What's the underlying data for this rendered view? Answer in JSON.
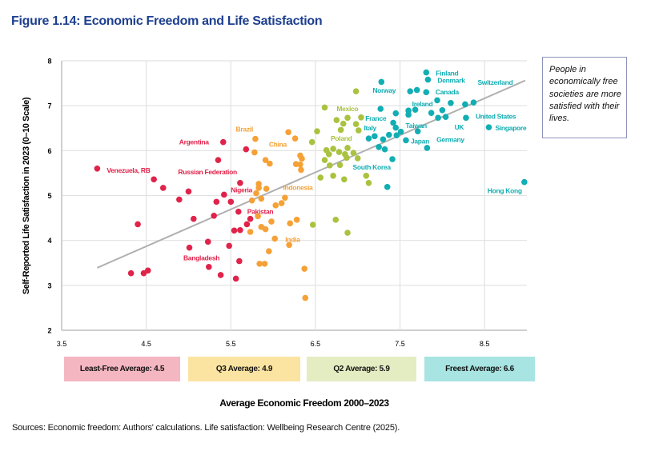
{
  "title": "Figure 1.14: Economic Freedom and Life Satisfaction",
  "note": "People in economically free societies are more satisfied with their lives.",
  "source": "Sources: Economic freedom: Authors' calculations. Life satisfaction: Wellbeing Research Centre (2025).",
  "bands": [
    {
      "label": "Least-Free Average: 4.5",
      "color": "#f4b7c1"
    },
    {
      "label": "Q3 Average: 4.9",
      "color": "#fbe4a2"
    },
    {
      "label": "Q2 Average: 5.9",
      "color": "#e4ecc2"
    },
    {
      "label": "Freest Average: 6.6",
      "color": "#a7e4e2"
    }
  ],
  "chart_data": {
    "type": "scatter",
    "title": "Figure 1.14: Economic Freedom and Life Satisfaction",
    "xlabel": "Average Economic Freedom 2000–2023",
    "ylabel": "Self-Reported Life Satisfaction in 2023 (0–10 Scale)",
    "xlim": [
      3.5,
      9.0
    ],
    "ylim": [
      2,
      8
    ],
    "xticks": [
      "3.5",
      "4.5",
      "5.5",
      "6.5",
      "7.5",
      "8.5"
    ],
    "yticks": [
      "2",
      "3",
      "4",
      "5",
      "6",
      "7",
      "8"
    ],
    "grid": true,
    "trendline": {
      "x": [
        3.92,
        8.98
      ],
      "y": [
        3.39,
        7.56
      ],
      "color": "#b0b0b0"
    },
    "series": [
      {
        "name": "Least-Free",
        "color": "#e0234a",
        "points": [
          {
            "x": 3.92,
            "y": 5.6,
            "label": "Venezuela, RB"
          },
          {
            "x": 4.59,
            "y": 5.36
          },
          {
            "x": 4.7,
            "y": 5.17
          },
          {
            "x": 5.0,
            "y": 5.09
          },
          {
            "x": 4.89,
            "y": 4.91
          },
          {
            "x": 4.4,
            "y": 4.36
          },
          {
            "x": 5.06,
            "y": 4.48
          },
          {
            "x": 5.3,
            "y": 4.55
          },
          {
            "x": 5.33,
            "y": 4.86
          },
          {
            "x": 5.42,
            "y": 5.02
          },
          {
            "x": 5.5,
            "y": 4.86,
            "label": "Nigeria"
          },
          {
            "x": 5.61,
            "y": 5.28
          },
          {
            "x": 5.59,
            "y": 4.64,
            "label": "Pakistan"
          },
          {
            "x": 5.73,
            "y": 4.48
          },
          {
            "x": 5.69,
            "y": 4.36
          },
          {
            "x": 5.54,
            "y": 4.22
          },
          {
            "x": 5.61,
            "y": 4.23
          },
          {
            "x": 5.41,
            "y": 6.19,
            "label": "Argentina"
          },
          {
            "x": 5.68,
            "y": 6.03
          },
          {
            "x": 5.35,
            "y": 5.79,
            "label": "Russian Federation"
          },
          {
            "x": 5.23,
            "y": 3.97
          },
          {
            "x": 5.01,
            "y": 3.84
          },
          {
            "x": 5.48,
            "y": 3.88,
            "label": "Bangladesh"
          },
          {
            "x": 5.6,
            "y": 3.54
          },
          {
            "x": 5.24,
            "y": 3.41
          },
          {
            "x": 5.38,
            "y": 3.23
          },
          {
            "x": 5.56,
            "y": 3.15
          },
          {
            "x": 4.32,
            "y": 3.27
          },
          {
            "x": 4.47,
            "y": 3.27
          },
          {
            "x": 4.52,
            "y": 3.33
          }
        ]
      },
      {
        "name": "Q3",
        "color": "#f5a136",
        "points": [
          {
            "x": 5.79,
            "y": 6.26,
            "label": "Brazil"
          },
          {
            "x": 5.78,
            "y": 5.96,
            "label": "China"
          },
          {
            "x": 6.18,
            "y": 6.41
          },
          {
            "x": 6.26,
            "y": 6.27
          },
          {
            "x": 5.91,
            "y": 5.79
          },
          {
            "x": 5.96,
            "y": 5.71
          },
          {
            "x": 6.32,
            "y": 5.89
          },
          {
            "x": 6.34,
            "y": 5.82
          },
          {
            "x": 6.27,
            "y": 5.7
          },
          {
            "x": 6.32,
            "y": 5.69
          },
          {
            "x": 6.33,
            "y": 5.57,
            "label": "Indonesia"
          },
          {
            "x": 5.83,
            "y": 5.26
          },
          {
            "x": 5.83,
            "y": 5.17
          },
          {
            "x": 5.8,
            "y": 5.05
          },
          {
            "x": 5.92,
            "y": 5.15
          },
          {
            "x": 5.75,
            "y": 4.89
          },
          {
            "x": 5.86,
            "y": 4.93
          },
          {
            "x": 6.14,
            "y": 4.95
          },
          {
            "x": 6.03,
            "y": 4.78
          },
          {
            "x": 6.1,
            "y": 4.83
          },
          {
            "x": 5.82,
            "y": 4.54
          },
          {
            "x": 5.98,
            "y": 4.42
          },
          {
            "x": 6.2,
            "y": 4.38
          },
          {
            "x": 6.28,
            "y": 4.46
          },
          {
            "x": 5.86,
            "y": 4.3
          },
          {
            "x": 5.91,
            "y": 4.25
          },
          {
            "x": 5.73,
            "y": 4.19
          },
          {
            "x": 6.02,
            "y": 4.04,
            "label": "India"
          },
          {
            "x": 6.19,
            "y": 3.9
          },
          {
            "x": 5.95,
            "y": 3.76
          },
          {
            "x": 5.84,
            "y": 3.48
          },
          {
            "x": 5.9,
            "y": 3.48
          },
          {
            "x": 6.37,
            "y": 3.37
          },
          {
            "x": 6.38,
            "y": 2.72
          }
        ]
      },
      {
        "name": "Q2",
        "color": "#a9c23f",
        "points": [
          {
            "x": 6.61,
            "y": 6.96
          },
          {
            "x": 6.52,
            "y": 6.43,
            "label": "Poland"
          },
          {
            "x": 6.46,
            "y": 6.19
          },
          {
            "x": 6.56,
            "y": 5.4
          },
          {
            "x": 6.47,
            "y": 4.35
          },
          {
            "x": 6.98,
            "y": 7.32
          },
          {
            "x": 6.75,
            "y": 6.68,
            "label": "Mexico"
          },
          {
            "x": 6.88,
            "y": 6.73
          },
          {
            "x": 6.83,
            "y": 6.6
          },
          {
            "x": 6.98,
            "y": 6.59
          },
          {
            "x": 7.04,
            "y": 6.74
          },
          {
            "x": 6.8,
            "y": 6.46
          },
          {
            "x": 7.01,
            "y": 6.45
          },
          {
            "x": 6.63,
            "y": 6.01
          },
          {
            "x": 6.71,
            "y": 6.04
          },
          {
            "x": 6.66,
            "y": 5.92
          },
          {
            "x": 6.78,
            "y": 5.97
          },
          {
            "x": 6.88,
            "y": 6.06
          },
          {
            "x": 6.85,
            "y": 5.92
          },
          {
            "x": 6.95,
            "y": 5.95
          },
          {
            "x": 6.87,
            "y": 5.84
          },
          {
            "x": 7.0,
            "y": 5.83
          },
          {
            "x": 6.61,
            "y": 5.79
          },
          {
            "x": 6.67,
            "y": 5.67
          },
          {
            "x": 6.79,
            "y": 5.68
          },
          {
            "x": 6.71,
            "y": 5.44
          },
          {
            "x": 6.84,
            "y": 5.36
          },
          {
            "x": 7.1,
            "y": 5.44
          },
          {
            "x": 7.13,
            "y": 5.28
          },
          {
            "x": 6.74,
            "y": 4.46
          },
          {
            "x": 6.88,
            "y": 4.17
          }
        ]
      },
      {
        "name": "Freest",
        "color": "#11aeb3",
        "points": [
          {
            "x": 7.28,
            "y": 7.53
          },
          {
            "x": 7.62,
            "y": 7.32,
            "label": "Norway"
          },
          {
            "x": 7.7,
            "y": 7.35
          },
          {
            "x": 7.81,
            "y": 7.74,
            "label": "Finland"
          },
          {
            "x": 7.83,
            "y": 7.58,
            "label": "Denmark"
          },
          {
            "x": 7.81,
            "y": 7.3
          },
          {
            "x": 7.94,
            "y": 7.12
          },
          {
            "x": 8.1,
            "y": 7.06
          },
          {
            "x": 8.27,
            "y": 7.03
          },
          {
            "x": 8.37,
            "y": 7.07,
            "label": "Switzerland"
          },
          {
            "x": 7.68,
            "y": 6.91,
            "label": "Ireland"
          },
          {
            "x": 7.6,
            "y": 6.89
          },
          {
            "x": 7.6,
            "y": 6.8
          },
          {
            "x": 7.87,
            "y": 6.84
          },
          {
            "x": 8.0,
            "y": 6.9,
            "label": "Canada"
          },
          {
            "x": 7.95,
            "y": 6.73,
            "label": "Germany"
          },
          {
            "x": 8.04,
            "y": 6.75,
            "label": "UK"
          },
          {
            "x": 8.28,
            "y": 6.73,
            "label": "United States"
          },
          {
            "x": 8.55,
            "y": 6.52,
            "label": "Singapore"
          },
          {
            "x": 7.27,
            "y": 6.93,
            "label": "France"
          },
          {
            "x": 7.45,
            "y": 6.83
          },
          {
            "x": 7.42,
            "y": 6.62
          },
          {
            "x": 7.45,
            "y": 6.51
          },
          {
            "x": 7.51,
            "y": 6.42
          },
          {
            "x": 7.46,
            "y": 6.34
          },
          {
            "x": 7.37,
            "y": 6.35
          },
          {
            "x": 7.3,
            "y": 6.25
          },
          {
            "x": 7.2,
            "y": 6.32
          },
          {
            "x": 7.13,
            "y": 6.27,
            "label": "Italy"
          },
          {
            "x": 7.71,
            "y": 6.43,
            "label": "Taiwan"
          },
          {
            "x": 7.57,
            "y": 6.23,
            "label": "Japan"
          },
          {
            "x": 7.82,
            "y": 6.06
          },
          {
            "x": 7.25,
            "y": 6.08,
            "label": "South Korea"
          },
          {
            "x": 7.32,
            "y": 6.03
          },
          {
            "x": 7.41,
            "y": 5.81
          },
          {
            "x": 7.35,
            "y": 5.19
          },
          {
            "x": 8.97,
            "y": 5.3,
            "label": "Hong Kong"
          }
        ]
      }
    ]
  }
}
